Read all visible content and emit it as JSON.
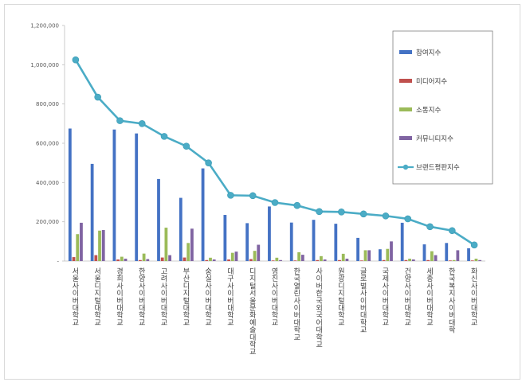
{
  "chart_data": {
    "type": "bar",
    "title": "",
    "xlabel": "",
    "ylabel": "",
    "ylim": [
      0,
      1200000
    ],
    "yticks": [
      0,
      200000,
      400000,
      600000,
      800000,
      1000000,
      1200000
    ],
    "ytick_labels": [
      "-",
      "200,000",
      "400,000",
      "600,000",
      "800,000",
      "1,000,000",
      "1,200,000"
    ],
    "legend_position": "top-right",
    "categories": [
      "서울사이버대학교",
      "서울디지털대학교",
      "경희사이버대학교",
      "한양사이버대학교",
      "고려사이버대학교",
      "부산디지털대학교",
      "숭실사이버대학교",
      "대구사이버대학교",
      "디지털서울문화예술대학교",
      "영진사이버대학교",
      "한국열린사이버대학교",
      "사이버한국외국어대학교",
      "원광디지털대학교",
      "글로벌사이버대학교",
      "국제사이버대학교",
      "건양사이버대학교",
      "세종사이버대학교",
      "한국복지사이버대학",
      "화신사이버대학교"
    ],
    "series": [
      {
        "name": "참여지수",
        "kind": "bar",
        "color": "#4472c4",
        "values": [
          675000,
          495000,
          670000,
          650000,
          418000,
          322000,
          472000,
          235000,
          193000,
          278000,
          196000,
          210000,
          190000,
          118000,
          60000,
          195000,
          85000,
          92000,
          65000
        ]
      },
      {
        "name": "미디어지수",
        "kind": "bar",
        "color": "#c0504d",
        "values": [
          20000,
          30000,
          8000,
          5000,
          18000,
          18000,
          5000,
          8000,
          10000,
          3000,
          3000,
          5000,
          5000,
          3000,
          5000,
          5000,
          5000,
          3000,
          3000
        ]
      },
      {
        "name": "소통지수",
        "kind": "bar",
        "color": "#9bbb59",
        "values": [
          137000,
          155000,
          22000,
          38000,
          170000,
          92000,
          17000,
          42000,
          52000,
          17000,
          45000,
          25000,
          37000,
          55000,
          62000,
          12000,
          50000,
          5000,
          12000
        ]
      },
      {
        "name": "커뮤니티지수",
        "kind": "bar",
        "color": "#8064a2",
        "values": [
          195000,
          158000,
          12000,
          10000,
          30000,
          165000,
          8000,
          48000,
          83000,
          5000,
          32000,
          8000,
          12000,
          55000,
          100000,
          8000,
          30000,
          55000,
          5000
        ]
      },
      {
        "name": "브랜드평판지수",
        "kind": "line",
        "color": "#4bacc6",
        "values": [
          1025000,
          835000,
          715000,
          700000,
          635000,
          585000,
          500000,
          335000,
          333000,
          298000,
          283000,
          252000,
          250000,
          240000,
          230000,
          215000,
          175000,
          155000,
          82000
        ]
      }
    ]
  }
}
